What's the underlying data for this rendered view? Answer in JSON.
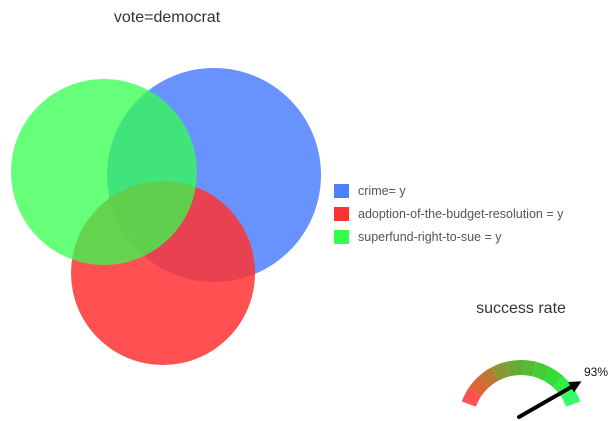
{
  "title": "vote=democrat",
  "sets": [
    {
      "label": "crime= y",
      "color": "#4d80ff"
    },
    {
      "label": "adoption-of-the-budget-resolution = y",
      "color": "#ff3333"
    },
    {
      "label": "superfund-right-to-sue = y",
      "color": "#33ff4d"
    }
  ],
  "gauge": {
    "title": "success rate",
    "value_label": "93%",
    "value": 0.93,
    "segment_colors": [
      "#ff5252",
      "#dd6633",
      "#bb7733",
      "#889933",
      "#66aa33",
      "#55bb33",
      "#44cc33",
      "#33dd33",
      "#33ee44",
      "#33ff66"
    ]
  }
}
